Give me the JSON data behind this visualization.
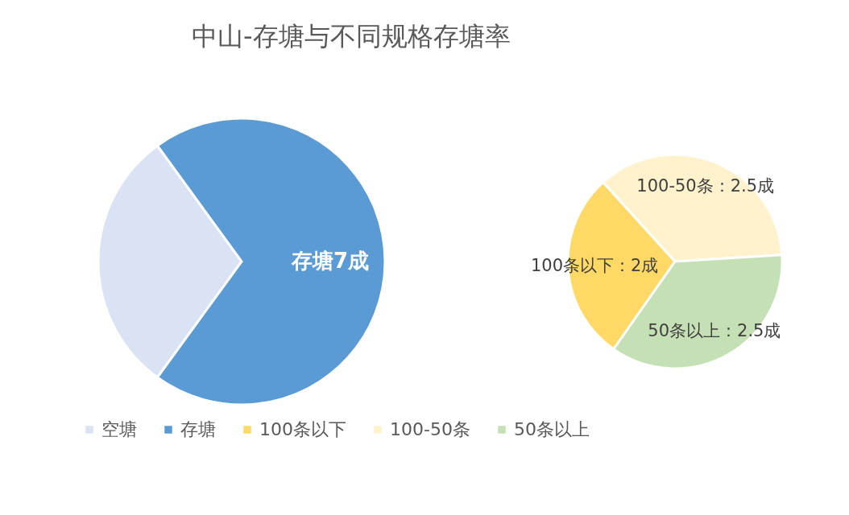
{
  "chart_data": [
    {
      "type": "pie",
      "title": "中山-存塘与不同规格存塘率",
      "categories": [
        "空塘",
        "存塘"
      ],
      "values": [
        3,
        7
      ],
      "colors": [
        "#dae3f3",
        "#5b9bd5"
      ],
      "value_labels": [
        null,
        "存塘7成"
      ],
      "legend": "bottom"
    },
    {
      "type": "pie",
      "categories": [
        "100条以下",
        "100-50条",
        "50条以上"
      ],
      "values": [
        2,
        2.5,
        2.5
      ],
      "colors": [
        "#ffd966",
        "#fff2cc",
        "#c5e0b4"
      ],
      "value_labels": [
        "100条以下：2成",
        "100-50条：2.5成",
        "50条以上：2.5成"
      ],
      "legend": "bottom"
    }
  ]
}
